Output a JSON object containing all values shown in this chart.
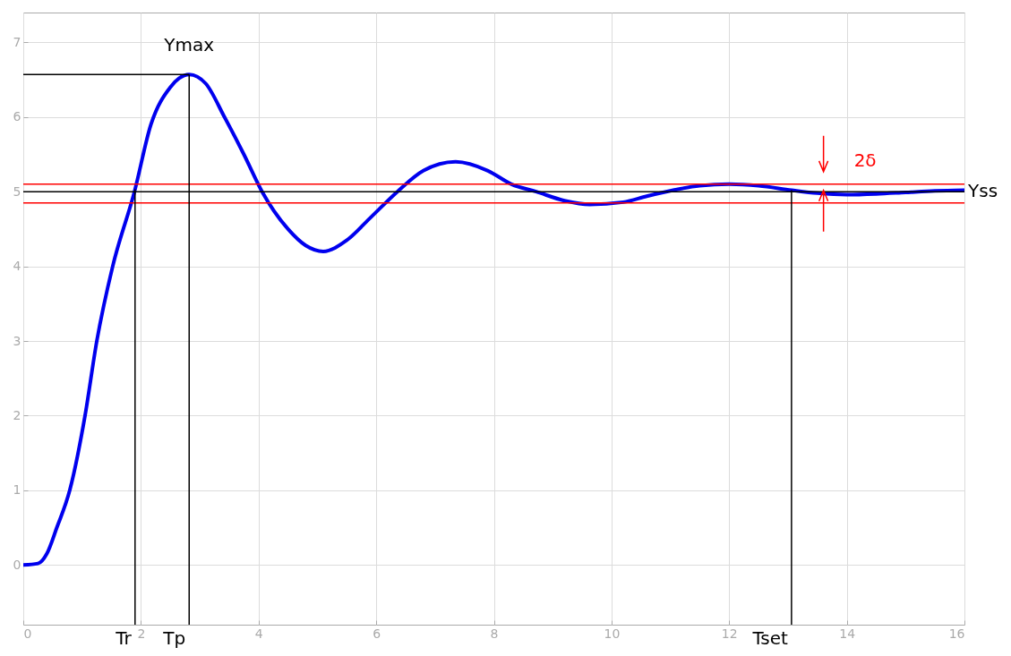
{
  "chart_data": {
    "type": "line",
    "x": [
      0,
      0.25,
      0.4,
      0.57,
      0.79,
      1.05,
      1.25,
      1.52,
      1.89,
      2.17,
      2.5,
      2.65,
      2.82,
      3.1,
      3.42,
      3.75,
      4.06,
      4.5,
      4.8,
      5.1,
      5.5,
      5.9,
      6.36,
      6.8,
      7.35,
      7.9,
      8.3,
      8.72,
      9.2,
      9.63,
      10.2,
      10.6,
      11.05,
      11.5,
      12.0,
      12.5,
      13.06,
      13.5,
      14.0,
      14.5,
      15.0,
      15.5,
      16
    ],
    "series": [
      {
        "color": "#0000ee",
        "values": [
          0,
          0.02,
          0.15,
          0.5,
          1,
          2,
          3,
          4,
          5,
          5.9,
          6.4,
          6.52,
          6.57,
          6.45,
          6,
          5.5,
          5,
          4.5,
          4.28,
          4.2,
          4.35,
          4.65,
          5,
          5.28,
          5.4,
          5.28,
          5.1,
          5,
          4.88,
          4.83,
          4.86,
          4.94,
          5.02,
          5.08,
          5.1,
          5.08,
          5.02,
          4.98,
          4.96,
          4.97,
          4.99,
          5.01,
          5.02
        ]
      }
    ],
    "xlim": [
      0,
      16
    ],
    "xticks": [
      0,
      2,
      4,
      6,
      8,
      10,
      12,
      14,
      16
    ],
    "ylim": [
      -0.8,
      7.4
    ],
    "yticks": [
      0,
      1,
      2,
      3,
      4,
      5,
      6,
      7
    ],
    "grid": true,
    "marker": "none",
    "line_style": "solid",
    "ref_lines": [
      {
        "axis": "y",
        "value": 6.57,
        "color": "#000000"
      },
      {
        "axis": "y",
        "value": 5,
        "label": "Yss",
        "color": "#000000"
      },
      {
        "axis": "y",
        "value": 5.1,
        "color": "#ff0000"
      },
      {
        "axis": "y",
        "value": 4.85,
        "color": "#ff0000"
      },
      {
        "axis": "x",
        "value": 1.9,
        "label": "Tr",
        "color": "#000000"
      },
      {
        "axis": "x",
        "value": 2.82,
        "label": "Tp",
        "color": "#000000"
      },
      {
        "axis": "x",
        "value": 13.06,
        "label": "Tset",
        "color": "#000000"
      }
    ],
    "annotations": [
      {
        "text": "Ymax",
        "x": 2.82,
        "y": 6.57
      },
      {
        "text": "2δ",
        "x": 14,
        "y": 5.1
      }
    ]
  }
}
